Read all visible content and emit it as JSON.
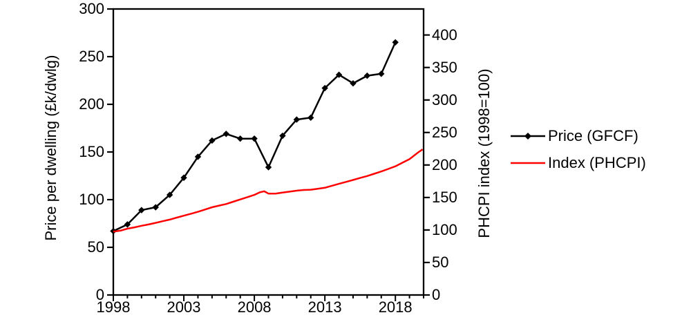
{
  "chart_data": {
    "type": "line",
    "title": "",
    "xlabel": "",
    "ylabel_left": "Price per dwelling (£k/dwlg)",
    "ylabel_right": "PHCPI index (1998=100)",
    "grid": false,
    "legend_position": "right-outside",
    "x_axis": {
      "min": 1998,
      "max": 2020,
      "major_ticks": [
        1998,
        2003,
        2008,
        2013,
        2018
      ],
      "minor_tick_step": 1
    },
    "left_axis": {
      "min": 0,
      "max": 300,
      "ticks": [
        0,
        50,
        100,
        150,
        200,
        250,
        300
      ]
    },
    "right_axis": {
      "min": 0,
      "max": 440,
      "ticks": [
        0,
        50,
        100,
        150,
        200,
        250,
        300,
        350,
        400
      ]
    },
    "series": [
      {
        "name": "Price (GFCF)",
        "axis": "left",
        "color": "#000000",
        "marker": "diamond",
        "x": [
          1998,
          1999,
          2000,
          2001,
          2002,
          2003,
          2004,
          2005,
          2006,
          2007,
          2008,
          2009,
          2010,
          2011,
          2012,
          2013,
          2014,
          2015,
          2016,
          2017,
          2018
        ],
        "values": [
          67,
          74,
          89,
          92,
          105,
          123,
          145,
          162,
          169,
          164,
          164,
          134,
          167,
          184,
          186,
          217,
          231,
          222,
          230,
          232,
          265
        ]
      },
      {
        "name": "Index (PHCPI)",
        "axis": "right",
        "color": "#ff0000",
        "marker": "none",
        "points": [
          [
            1998,
            97.5
          ],
          [
            1998.5,
            99
          ],
          [
            1999,
            102
          ],
          [
            1999.5,
            104
          ],
          [
            2000,
            106.5
          ],
          [
            2000.5,
            108.5
          ],
          [
            2001,
            111
          ],
          [
            2001.5,
            113.5
          ],
          [
            2002,
            116
          ],
          [
            2002.5,
            119
          ],
          [
            2003,
            122
          ],
          [
            2003.5,
            125
          ],
          [
            2004,
            128
          ],
          [
            2004.5,
            131.5
          ],
          [
            2005,
            135
          ],
          [
            2005.5,
            137.5
          ],
          [
            2006,
            140
          ],
          [
            2006.5,
            143.5
          ],
          [
            2007,
            147
          ],
          [
            2007.5,
            150.5
          ],
          [
            2008,
            154
          ],
          [
            2008.4,
            158
          ],
          [
            2008.7,
            159.5
          ],
          [
            2009,
            156
          ],
          [
            2009.5,
            156
          ],
          [
            2010,
            157.5
          ],
          [
            2010.5,
            159
          ],
          [
            2011,
            160.5
          ],
          [
            2011.5,
            161.5
          ],
          [
            2012,
            162
          ],
          [
            2012.5,
            163.5
          ],
          [
            2013,
            165
          ],
          [
            2013.5,
            168
          ],
          [
            2014,
            171
          ],
          [
            2014.5,
            174
          ],
          [
            2015,
            177
          ],
          [
            2015.5,
            180
          ],
          [
            2016,
            183
          ],
          [
            2016.5,
            186.5
          ],
          [
            2017,
            190
          ],
          [
            2017.5,
            194
          ],
          [
            2018,
            198
          ],
          [
            2018.5,
            203.5
          ],
          [
            2019,
            209
          ],
          [
            2019.3,
            214
          ],
          [
            2019.6,
            219
          ],
          [
            2019.93,
            224
          ]
        ]
      }
    ]
  },
  "layout_colors": {
    "axis": "#000000",
    "background": "#ffffff"
  }
}
